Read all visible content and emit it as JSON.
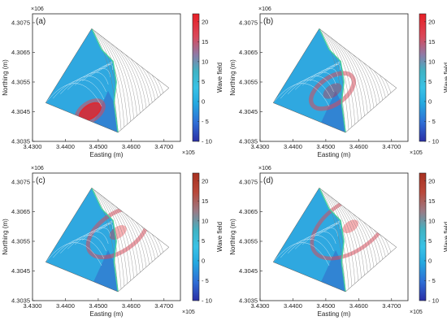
{
  "chart_data": [
    {
      "type": "heatmap",
      "panel_label": "(a)",
      "xlabel": "Easting (m)",
      "ylabel": "Northing (m)",
      "x_exponent": "×10^5",
      "y_exponent": "×10^6",
      "x_ticks": [
        "3.4300",
        "3.4400",
        "3.4500",
        "3.4600",
        "3.4700"
      ],
      "y_ticks": [
        "4.3075",
        "4.3065",
        "4.3055",
        "4.3045",
        "4.3035"
      ],
      "colorbar_label": "Wave field",
      "colorbar_ticks": [
        "20",
        "15",
        "10",
        "5",
        "0",
        "- 5",
        "- 10"
      ],
      "colorbar_range": [
        -10,
        22
      ],
      "wave_peak": {
        "easting": 3.4475,
        "northing": 4.3045,
        "value": 20
      },
      "wave_front_radius": 0.45
    },
    {
      "type": "heatmap",
      "panel_label": "(b)",
      "xlabel": "Easting (m)",
      "ylabel": "Northing (m)",
      "x_exponent": "×10^5",
      "y_exponent": "×10^6",
      "x_ticks": [
        "3.4300",
        "3.4400",
        "3.4500",
        "3.4600",
        "3.4700"
      ],
      "y_ticks": [
        "4.3075",
        "4.3065",
        "4.3055",
        "4.3045",
        "4.3035"
      ],
      "colorbar_label": "Wave field",
      "colorbar_ticks": [
        "20",
        "15",
        "10",
        "5",
        "0",
        "- 5",
        "- 10"
      ],
      "colorbar_range": [
        -10,
        22
      ],
      "wave_peak": {
        "easting": 3.452,
        "northing": 4.3052,
        "value": 14
      },
      "wave_front_radius": 0.75
    },
    {
      "type": "heatmap",
      "panel_label": "(c)",
      "xlabel": "Easting (m)",
      "ylabel": "Northing (m)",
      "x_exponent": "×10^5",
      "y_exponent": "×10^6",
      "x_ticks": [
        "3.4300",
        "3.4400",
        "3.4500",
        "3.4600",
        "3.4700"
      ],
      "y_ticks": [
        "4.3075",
        "4.3065",
        "4.3055",
        "4.3045",
        "4.3035"
      ],
      "colorbar_label": "Wave field",
      "colorbar_ticks": [
        "20",
        "15",
        "10",
        "5",
        "0",
        "- 5",
        "- 10"
      ],
      "colorbar_range": [
        -10,
        22
      ],
      "wave_peak": {
        "easting": 3.456,
        "northing": 4.3058,
        "value": 12
      },
      "wave_front_radius": 1.05
    },
    {
      "type": "heatmap",
      "panel_label": "(d)",
      "xlabel": "Easting (m)",
      "ylabel": "Northing (m)",
      "x_exponent": "×10^5",
      "y_exponent": "×10^6",
      "x_ticks": [
        "3.4300",
        "3.4400",
        "3.4500",
        "3.4600",
        "3.4700"
      ],
      "y_ticks": [
        "4.3075",
        "4.3065",
        "4.3055",
        "4.3045",
        "4.3035"
      ],
      "colorbar_label": "Wave field",
      "colorbar_ticks": [
        "20",
        "15",
        "10",
        "5",
        "0",
        "- 5",
        "- 10"
      ],
      "colorbar_range": [
        -10,
        22
      ],
      "wave_peak": {
        "easting": 3.4575,
        "northing": 4.306,
        "value": 10
      },
      "wave_front_radius": 1.35
    }
  ]
}
